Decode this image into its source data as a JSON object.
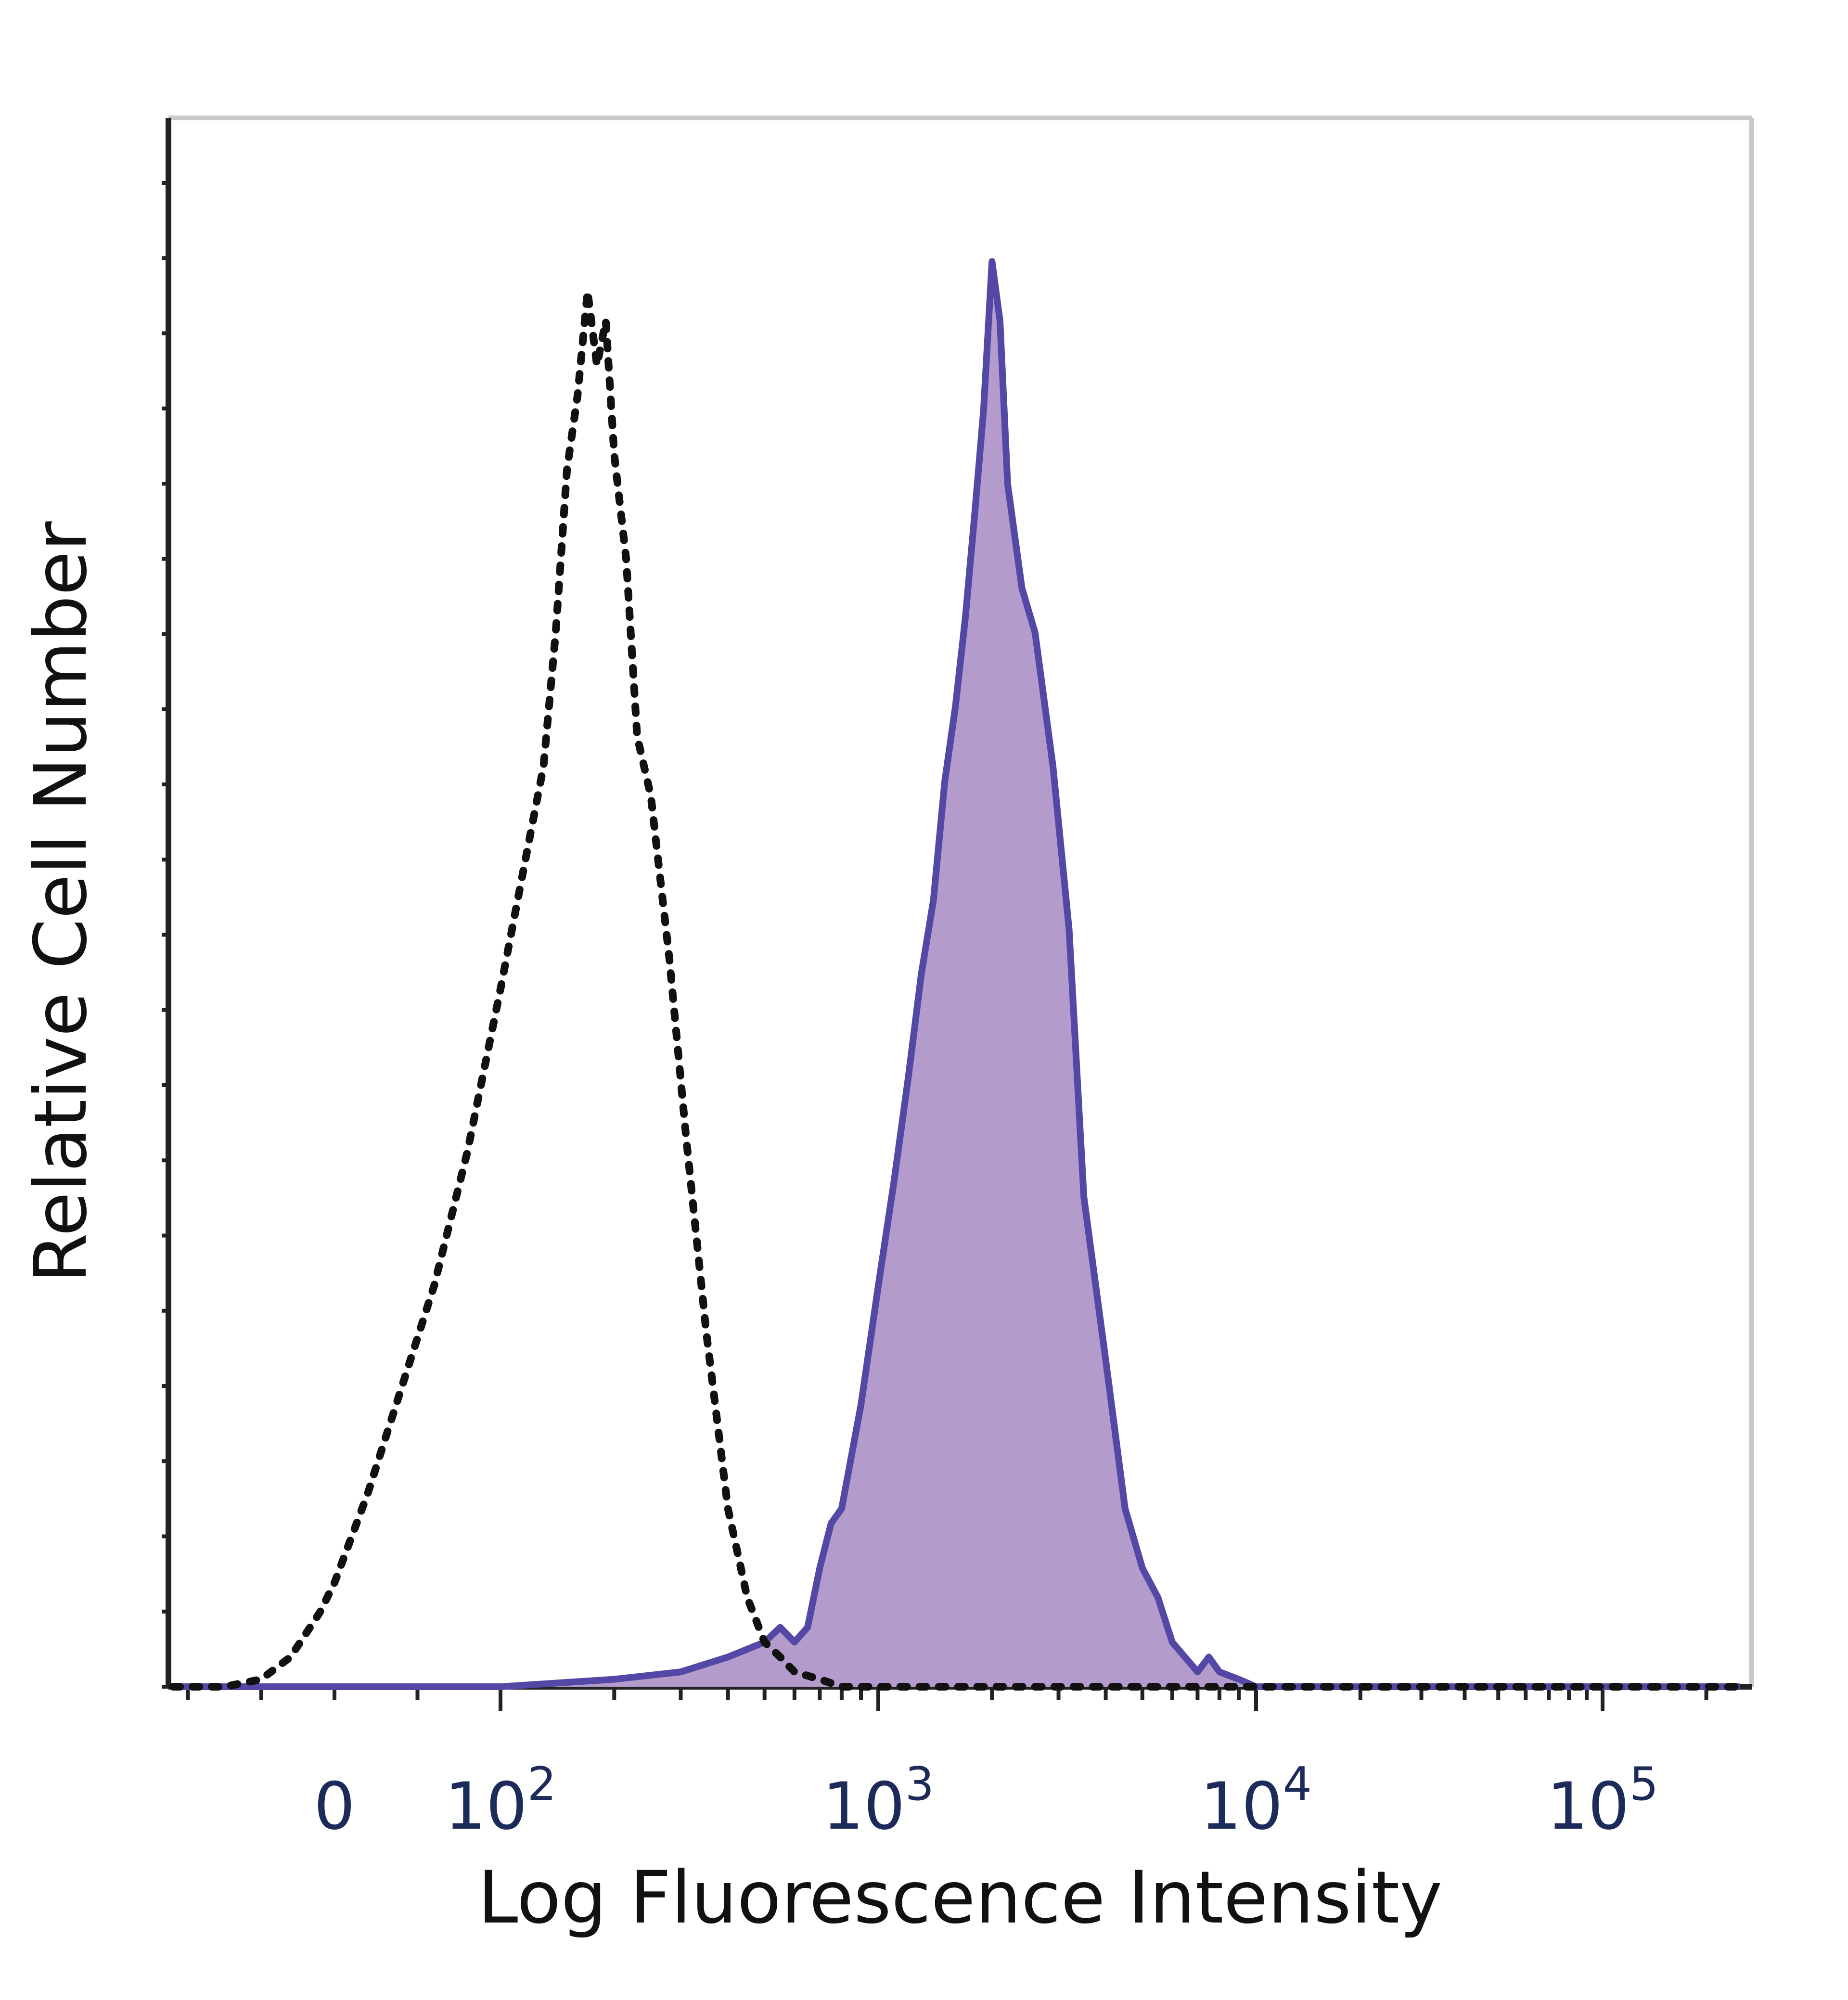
{
  "chart_data": {
    "type": "area",
    "title": "",
    "xlabel": "Log Fluorescence Intensity",
    "ylabel": "Relative Cell Number",
    "x_scale": "biexponential",
    "x_ticks": [
      {
        "value": 0,
        "base": "0",
        "exp": ""
      },
      {
        "value": 100,
        "base": "10",
        "exp": "2"
      },
      {
        "value": 1000,
        "base": "10",
        "exp": "3"
      },
      {
        "value": 10000,
        "base": "10",
        "exp": "4"
      },
      {
        "value": 100000,
        "base": "10",
        "exp": "5"
      }
    ],
    "xlim": [
      -220,
      250000
    ],
    "ylim": [
      0,
      100
    ],
    "grid": false,
    "legend": "none",
    "series": [
      {
        "style": "dotted-black",
        "color": "#111111",
        "x": [
          -220,
          -150,
          -100,
          -60,
          -20,
          0,
          20,
          40,
          60,
          80,
          100,
          115,
          130,
          140,
          150,
          160,
          170,
          180,
          190,
          200,
          215,
          230,
          250,
          280,
          310,
          350,
          400,
          450,
          500,
          550,
          600,
          700,
          800,
          1000,
          1500,
          3000,
          10000,
          100000,
          250000
        ],
        "y": [
          0,
          0,
          0.5,
          2,
          5,
          7,
          13,
          20,
          27,
          36,
          47,
          55,
          62,
          71,
          82,
          87,
          94,
          89,
          92,
          83,
          76,
          64,
          60,
          49,
          37,
          24,
          12,
          6,
          3,
          2,
          1,
          0.5,
          0,
          0,
          0,
          0,
          0,
          0,
          0
        ]
      },
      {
        "style": "filled-purple",
        "color": "#5448a6",
        "fill": "#b39ccb",
        "x": [
          -220,
          100,
          200,
          300,
          400,
          500,
          550,
          600,
          650,
          700,
          750,
          800,
          900,
          1000,
          1100,
          1200,
          1300,
          1400,
          1500,
          1600,
          1700,
          1800,
          1900,
          2000,
          2100,
          2200,
          2400,
          2600,
          2900,
          3200,
          3500,
          4000,
          4500,
          5000,
          5500,
          6000,
          7000,
          7500,
          8000,
          9000,
          10000,
          12000,
          100000,
          250000
        ],
        "y": [
          0,
          0,
          0.5,
          1,
          2,
          3,
          4,
          3,
          4,
          8,
          11,
          12,
          19,
          27,
          34,
          41,
          48,
          53,
          61,
          66,
          72,
          79,
          86,
          96,
          92,
          81,
          74,
          71,
          62,
          51,
          33,
          22,
          12,
          8,
          6,
          3,
          1,
          2,
          1,
          0.5,
          0,
          0,
          0,
          0
        ]
      }
    ]
  }
}
